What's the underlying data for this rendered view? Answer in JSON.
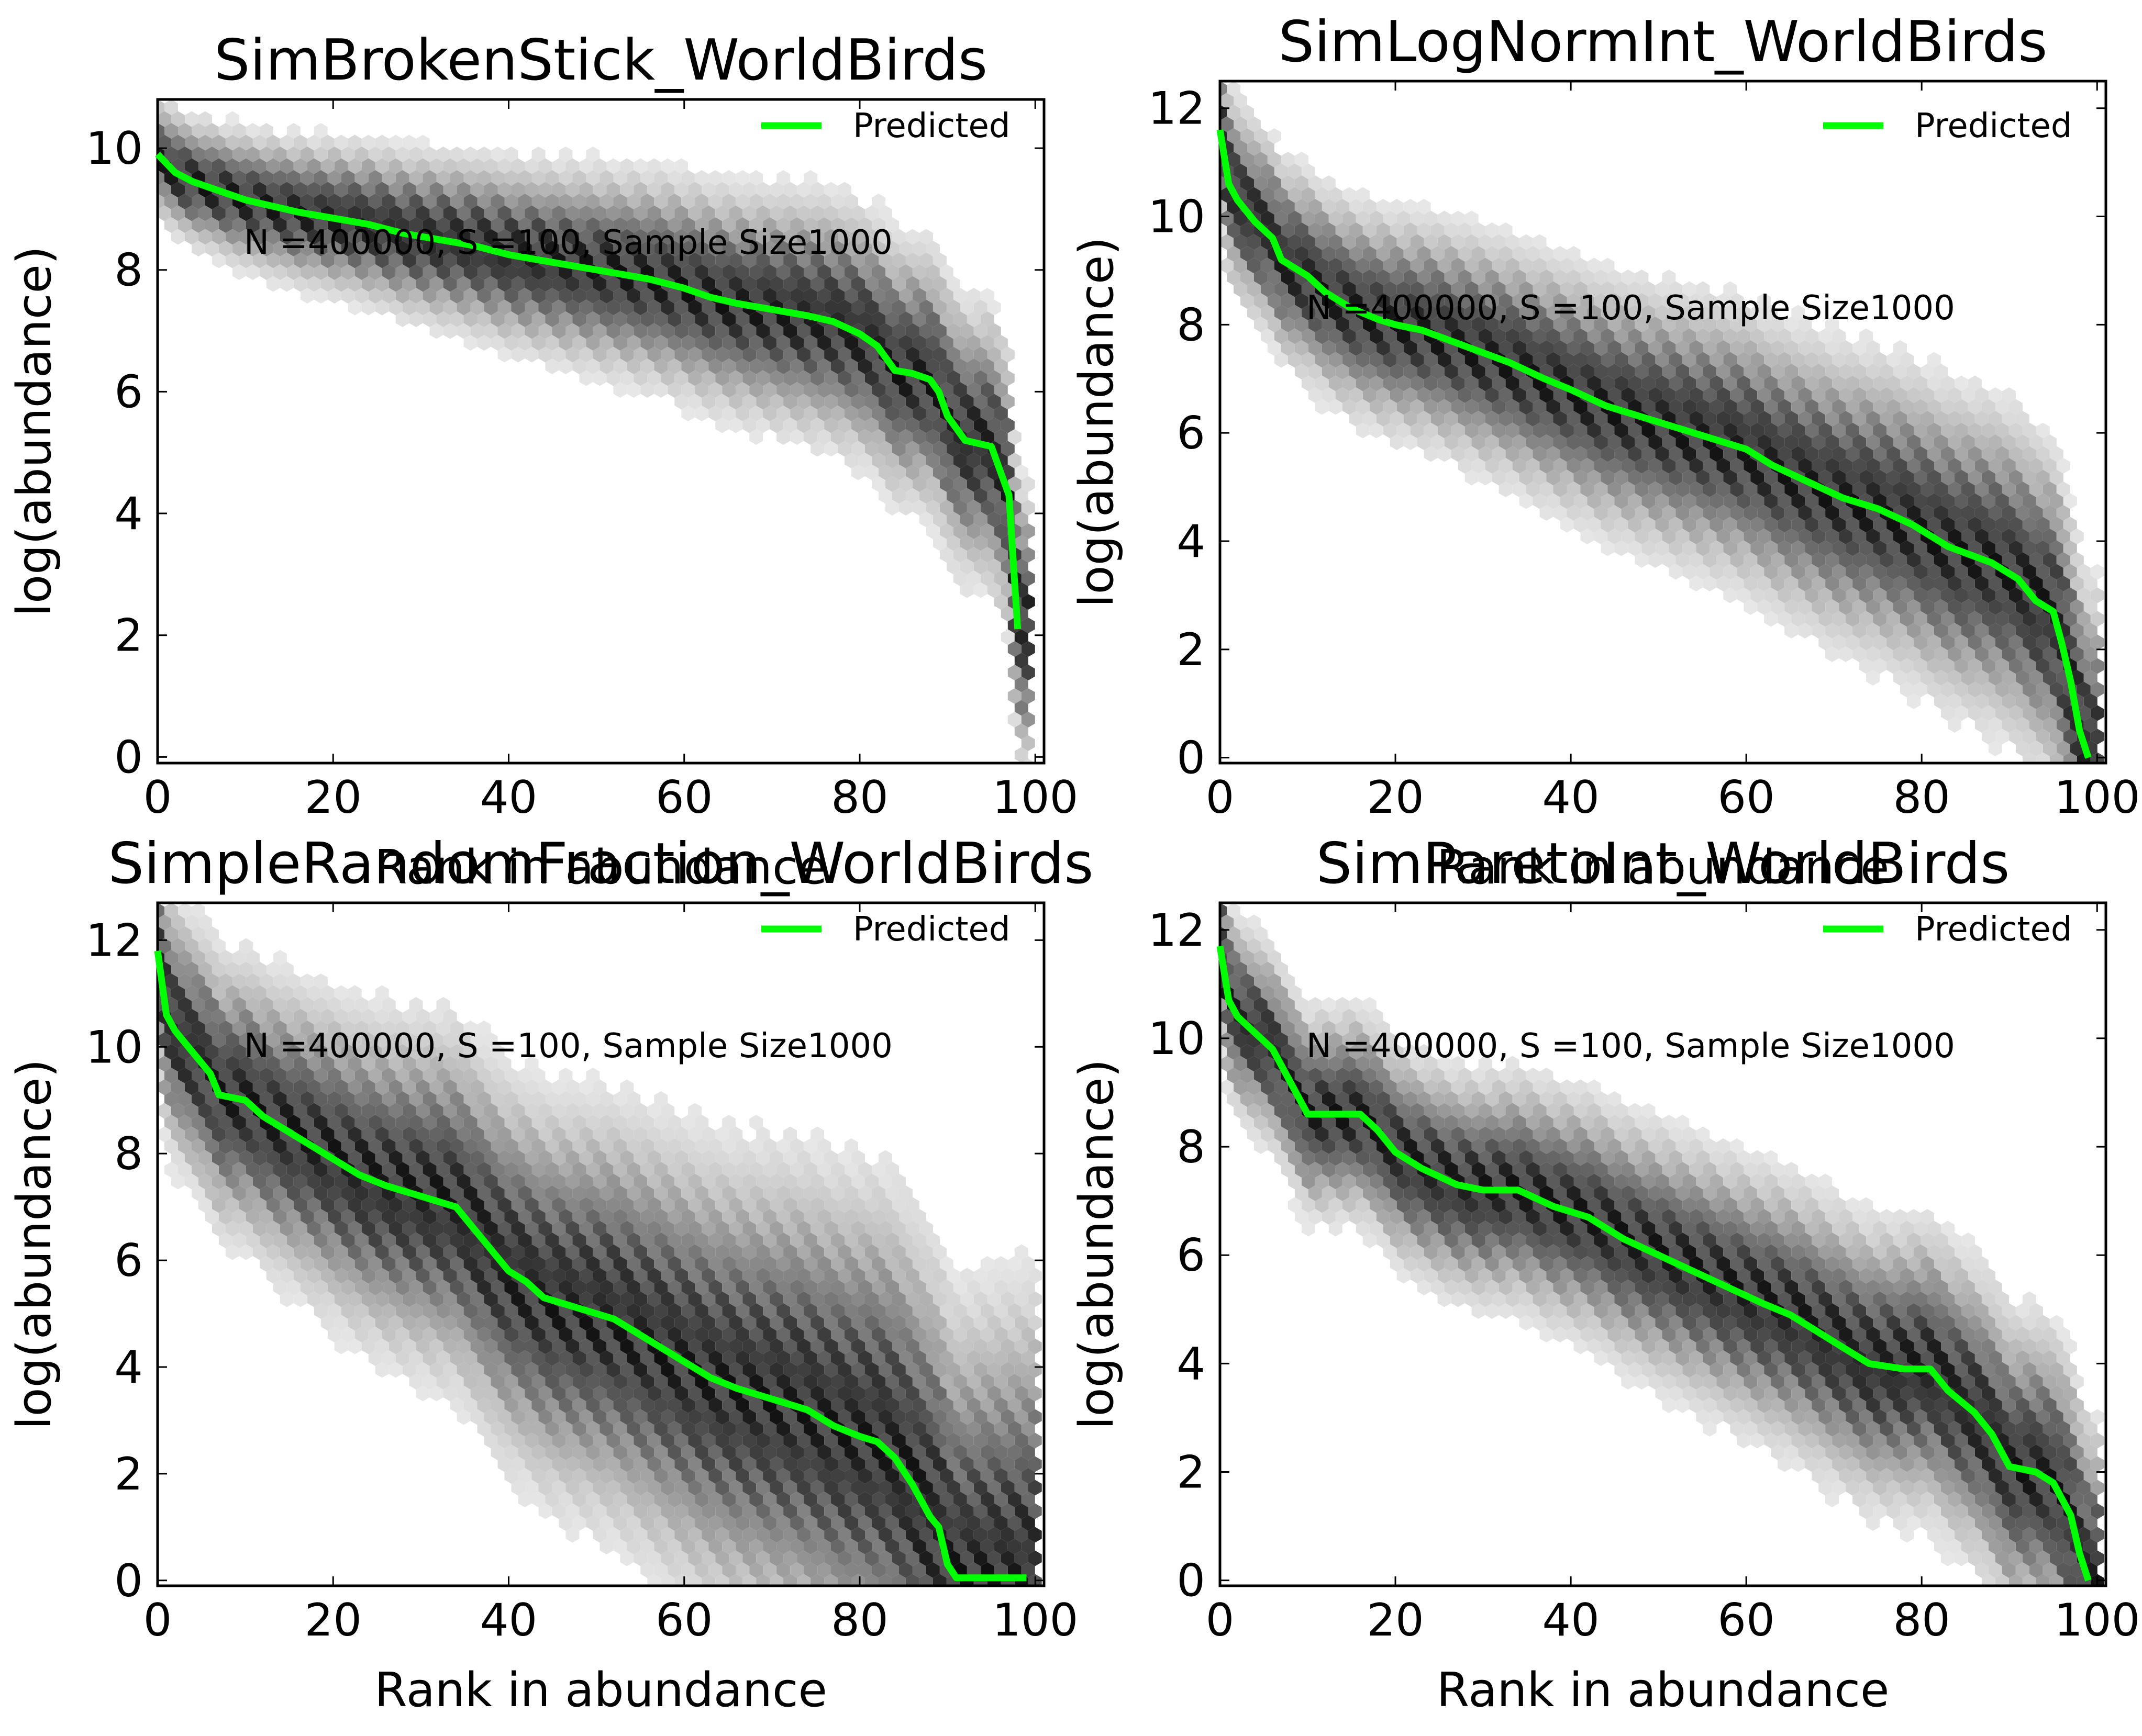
{
  "chart_data": [
    {
      "type": "line",
      "title": "SimBrokenStick_WorldBirds",
      "xlabel": "Rank in abundance",
      "ylabel": "log(abundance)",
      "xlim": [
        0,
        101
      ],
      "ylim": [
        -0.1,
        10.8
      ],
      "xticks": [
        0,
        20,
        40,
        60,
        80,
        100
      ],
      "yticks": [
        0,
        2,
        4,
        6,
        8,
        10
      ],
      "annotation": "N =400000, S =100, Sample Size1000",
      "legend": "top-right",
      "series": [
        {
          "name": "Predicted",
          "color": "#00ff00",
          "points": [
            [
              0,
              9.9
            ],
            [
              1,
              9.75
            ],
            [
              2,
              9.6
            ],
            [
              4,
              9.45
            ],
            [
              6,
              9.35
            ],
            [
              8,
              9.25
            ],
            [
              10,
              9.15
            ],
            [
              13,
              9.05
            ],
            [
              16,
              8.95
            ],
            [
              20,
              8.85
            ],
            [
              24,
              8.75
            ],
            [
              28,
              8.6
            ],
            [
              32,
              8.5
            ],
            [
              36,
              8.4
            ],
            [
              40,
              8.25
            ],
            [
              44,
              8.15
            ],
            [
              48,
              8.05
            ],
            [
              52,
              7.95
            ],
            [
              56,
              7.85
            ],
            [
              60,
              7.7
            ],
            [
              63,
              7.55
            ],
            [
              66,
              7.45
            ],
            [
              70,
              7.35
            ],
            [
              74,
              7.25
            ],
            [
              77,
              7.15
            ],
            [
              80,
              6.95
            ],
            [
              82,
              6.75
            ],
            [
              84,
              6.35
            ],
            [
              86,
              6.3
            ],
            [
              88,
              6.2
            ],
            [
              89,
              6.0
            ],
            [
              90,
              5.6
            ],
            [
              92,
              5.2
            ],
            [
              95,
              5.1
            ],
            [
              96,
              4.7
            ],
            [
              97,
              4.3
            ],
            [
              98,
              2.1
            ]
          ]
        }
      ],
      "density_band": {
        "colormap": "greys",
        "center": "predicted",
        "spread_top": 0.5,
        "spread_end": 1.2
      }
    },
    {
      "type": "line",
      "title": "SimLogNormInt_WorldBirds",
      "xlabel": "Rank in abundance",
      "ylabel": "log(abundance)",
      "xlim": [
        0,
        101
      ],
      "ylim": [
        -0.1,
        12.5
      ],
      "xticks": [
        0,
        20,
        40,
        60,
        80,
        100
      ],
      "yticks": [
        0,
        2,
        4,
        6,
        8,
        10,
        12
      ],
      "annotation": "N =400000, S =100, Sample Size1000",
      "legend": "top-right",
      "series": [
        {
          "name": "Predicted",
          "color": "#00ff00",
          "points": [
            [
              0,
              11.6
            ],
            [
              1,
              10.6
            ],
            [
              2,
              10.3
            ],
            [
              4,
              9.9
            ],
            [
              6,
              9.6
            ],
            [
              7,
              9.2
            ],
            [
              10,
              8.9
            ],
            [
              12,
              8.6
            ],
            [
              15,
              8.3
            ],
            [
              18,
              8.1
            ],
            [
              20,
              8.0
            ],
            [
              23,
              7.9
            ],
            [
              28,
              7.6
            ],
            [
              33,
              7.3
            ],
            [
              37,
              7.0
            ],
            [
              40,
              6.8
            ],
            [
              44,
              6.5
            ],
            [
              48,
              6.3
            ],
            [
              52,
              6.1
            ],
            [
              56,
              5.9
            ],
            [
              60,
              5.7
            ],
            [
              63,
              5.4
            ],
            [
              67,
              5.1
            ],
            [
              71,
              4.8
            ],
            [
              75,
              4.6
            ],
            [
              79,
              4.3
            ],
            [
              83,
              3.9
            ],
            [
              88,
              3.6
            ],
            [
              91,
              3.3
            ],
            [
              93,
              2.9
            ],
            [
              95,
              2.7
            ],
            [
              96,
              2.1
            ],
            [
              97,
              1.4
            ],
            [
              98,
              0.5
            ],
            [
              99,
              0.0
            ]
          ]
        }
      ],
      "density_band": {
        "colormap": "greys",
        "center": "predicted",
        "spread_top": 0.9,
        "spread_end": 1.6
      }
    },
    {
      "type": "line",
      "title": "SimpleRandomFraction_WorldBirds",
      "xlabel": "Rank in abundance",
      "ylabel": "log(abundance)",
      "xlim": [
        0,
        101
      ],
      "ylim": [
        -0.1,
        12.7
      ],
      "xticks": [
        0,
        20,
        40,
        60,
        80,
        100
      ],
      "yticks": [
        0,
        2,
        4,
        6,
        8,
        10,
        12
      ],
      "annotation": "N =400000, S =100, Sample Size1000",
      "legend": "top-right",
      "series": [
        {
          "name": "Predicted",
          "color": "#00ff00",
          "points": [
            [
              0,
              11.8
            ],
            [
              1,
              10.6
            ],
            [
              2,
              10.3
            ],
            [
              4,
              9.9
            ],
            [
              6,
              9.5
            ],
            [
              7,
              9.1
            ],
            [
              10,
              9.0
            ],
            [
              12,
              8.7
            ],
            [
              15,
              8.4
            ],
            [
              18,
              8.1
            ],
            [
              20,
              7.9
            ],
            [
              23,
              7.6
            ],
            [
              26,
              7.4
            ],
            [
              30,
              7.2
            ],
            [
              34,
              7.0
            ],
            [
              36,
              6.6
            ],
            [
              38,
              6.2
            ],
            [
              40,
              5.8
            ],
            [
              42,
              5.6
            ],
            [
              44,
              5.3
            ],
            [
              48,
              5.1
            ],
            [
              52,
              4.9
            ],
            [
              55,
              4.6
            ],
            [
              58,
              4.3
            ],
            [
              60,
              4.1
            ],
            [
              63,
              3.8
            ],
            [
              66,
              3.6
            ],
            [
              70,
              3.4
            ],
            [
              74,
              3.2
            ],
            [
              77,
              2.9
            ],
            [
              80,
              2.7
            ],
            [
              82,
              2.6
            ],
            [
              84,
              2.3
            ],
            [
              86,
              1.8
            ],
            [
              88,
              1.2
            ],
            [
              89,
              1.0
            ],
            [
              90,
              0.3
            ],
            [
              91,
              0.05
            ],
            [
              99,
              0.05
            ]
          ]
        }
      ],
      "density_band": {
        "colormap": "greys",
        "center": "predicted",
        "spread_top": 1.2,
        "spread_end": 2.8
      }
    },
    {
      "type": "line",
      "title": "SimParetoInt_WorldBirds",
      "xlabel": "Rank in abundance",
      "ylabel": "log(abundance)",
      "xlim": [
        0,
        101
      ],
      "ylim": [
        -0.1,
        12.5
      ],
      "xticks": [
        0,
        20,
        40,
        60,
        80,
        100
      ],
      "yticks": [
        0,
        2,
        4,
        6,
        8,
        10,
        12
      ],
      "annotation": "N =400000, S =100, Sample Size1000",
      "legend": "top-right",
      "series": [
        {
          "name": "Predicted",
          "color": "#00ff00",
          "points": [
            [
              0,
              11.7
            ],
            [
              1,
              10.7
            ],
            [
              2,
              10.4
            ],
            [
              4,
              10.1
            ],
            [
              6,
              9.8
            ],
            [
              8,
              9.2
            ],
            [
              10,
              8.6
            ],
            [
              14,
              8.6
            ],
            [
              16,
              8.6
            ],
            [
              18,
              8.3
            ],
            [
              20,
              7.9
            ],
            [
              23,
              7.6
            ],
            [
              27,
              7.3
            ],
            [
              30,
              7.2
            ],
            [
              34,
              7.2
            ],
            [
              38,
              6.9
            ],
            [
              42,
              6.7
            ],
            [
              46,
              6.3
            ],
            [
              50,
              6.0
            ],
            [
              54,
              5.7
            ],
            [
              58,
              5.4
            ],
            [
              62,
              5.1
            ],
            [
              65,
              4.9
            ],
            [
              68,
              4.6
            ],
            [
              71,
              4.3
            ],
            [
              74,
              4.0
            ],
            [
              78,
              3.9
            ],
            [
              81,
              3.9
            ],
            [
              83,
              3.5
            ],
            [
              86,
              3.1
            ],
            [
              88,
              2.7
            ],
            [
              90,
              2.1
            ],
            [
              93,
              2.0
            ],
            [
              95,
              1.8
            ],
            [
              97,
              1.2
            ],
            [
              98,
              0.5
            ],
            [
              99,
              0.0
            ]
          ]
        }
      ],
      "density_band": {
        "colormap": "greys",
        "center": "predicted",
        "spread_top": 0.9,
        "spread_end": 1.5
      }
    }
  ]
}
